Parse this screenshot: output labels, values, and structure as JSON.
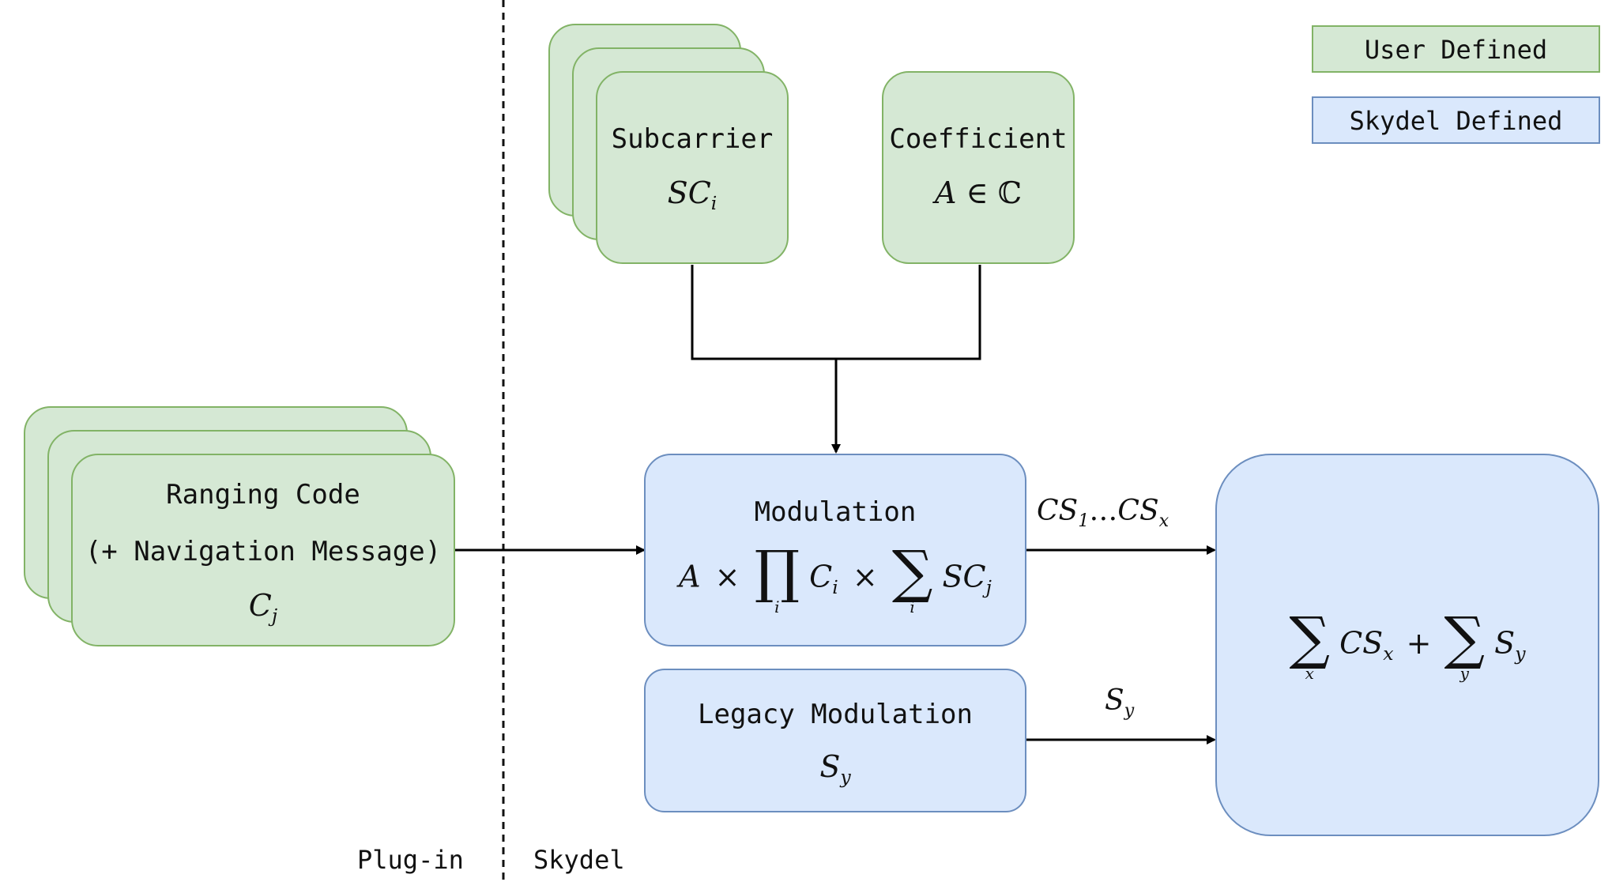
{
  "legend": {
    "user_defined": "User Defined",
    "skydel_defined": "Skydel Defined",
    "user_color": "#d5e8d4",
    "user_border": "#82b366",
    "skydel_color": "#dae8fc",
    "skydel_border": "#6c8ebf"
  },
  "regions": {
    "plugin": "Plug-in",
    "skydel": "Skydel"
  },
  "subcarrier": {
    "title": "Subcarrier",
    "symbol": "SC",
    "index": "i"
  },
  "coefficient": {
    "title": "Coefficient",
    "symbol": "A",
    "relation": "∈",
    "set": "ℂ"
  },
  "ranging": {
    "title": "Ranging Code",
    "subtitle": "(+ Navigation Message)",
    "symbol": "C",
    "index": "j"
  },
  "modulation": {
    "title": "Modulation",
    "coef": "A",
    "times": "×",
    "product": "∏",
    "product_index": "i",
    "code": "C",
    "code_index": "i",
    "sum": "∑",
    "sum_index": "i",
    "sub": "SC",
    "sub_index": "j"
  },
  "legacy": {
    "title": "Legacy Modulation",
    "symbol": "S",
    "index": "y"
  },
  "combiner": {
    "sum1": "∑",
    "sum1_index": "x",
    "term1": "CS",
    "term1_index": "x",
    "plus": "+",
    "sum2": "∑",
    "sum2_index": "y",
    "term2": "S",
    "term2_index": "y"
  },
  "edges": {
    "modulation_out": {
      "a": "CS",
      "a_index": "1",
      "dots": "…",
      "b": "CS",
      "b_index": "x"
    },
    "legacy_out": {
      "symbol": "S",
      "index": "y"
    }
  }
}
